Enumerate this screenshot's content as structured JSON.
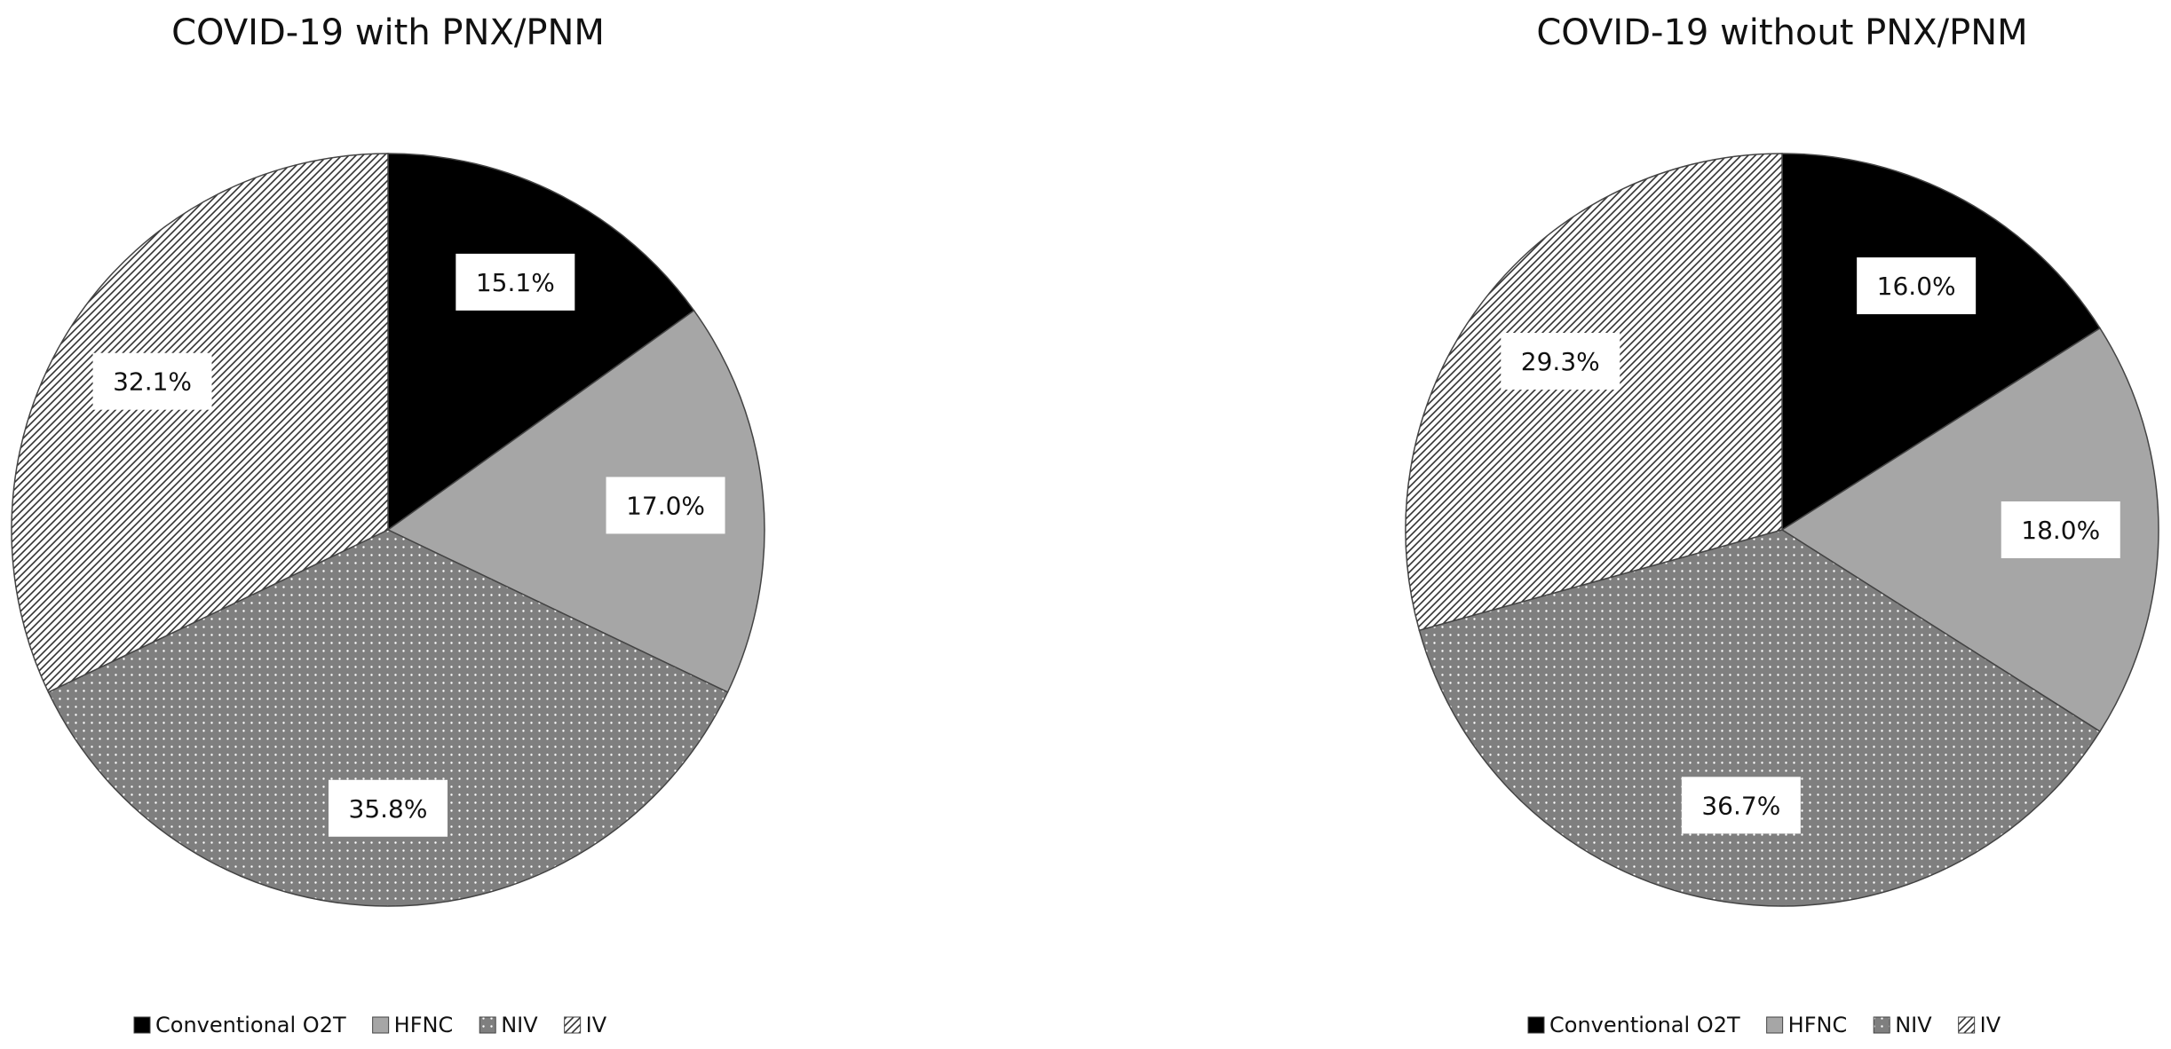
{
  "chart_data": [
    {
      "type": "pie",
      "title": "COVID-19 with PNX/PNM",
      "categories": [
        "Conventional O2T",
        "HFNC",
        "NIV",
        "IV"
      ],
      "values": [
        15.1,
        17.0,
        35.8,
        32.1
      ],
      "value_labels": [
        "15.1%",
        "17.0%",
        "35.8%",
        "32.1%"
      ],
      "colors": [
        "#000000",
        "#a6a6a6",
        "#7f7f7f",
        "#ffffff"
      ],
      "patterns": [
        "solid",
        "solid",
        "dots",
        "hatch"
      ],
      "legend": "bottom"
    },
    {
      "type": "pie",
      "title": "COVID-19 without PNX/PNM",
      "categories": [
        "Conventional O2T",
        "HFNC",
        "NIV",
        "IV"
      ],
      "values": [
        16.0,
        18.0,
        36.7,
        29.3
      ],
      "value_labels": [
        "16.0%",
        "18.0%",
        "36.7%",
        "29.3%"
      ],
      "colors": [
        "#000000",
        "#a6a6a6",
        "#7f7f7f",
        "#ffffff"
      ],
      "patterns": [
        "solid",
        "solid",
        "dots",
        "hatch"
      ],
      "legend": "bottom"
    }
  ]
}
